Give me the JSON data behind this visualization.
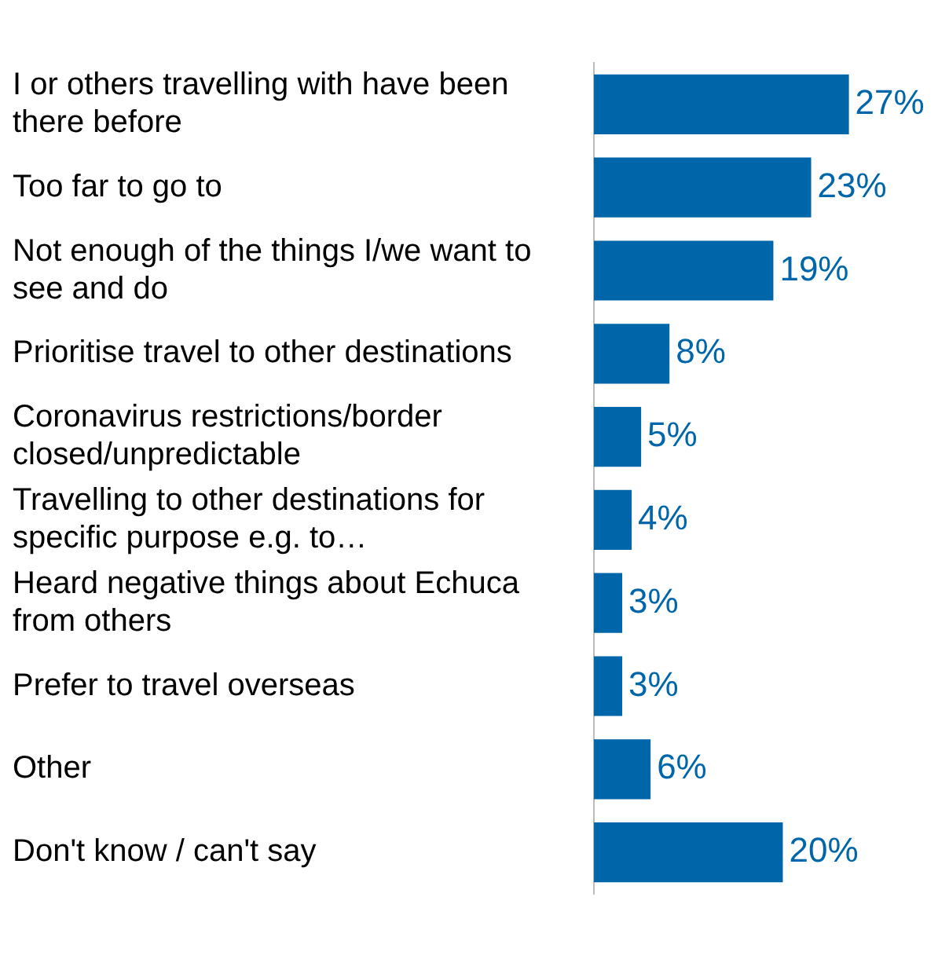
{
  "chart_data": {
    "type": "bar",
    "orientation": "horizontal",
    "categories": [
      "I or others travelling with have been there before",
      "Too far to go to",
      "Not enough of the things I/we want to see and do",
      "Prioritise travel to other destinations",
      "Coronavirus restrictions/border closed/unpredictable",
      "Travelling to other destinations for specific purpose e.g. to…",
      "Heard negative things about Echuca from others",
      "Prefer to travel overseas",
      "Other",
      "Don't know / can't say"
    ],
    "values": [
      27,
      23,
      19,
      8,
      5,
      4,
      3,
      3,
      6,
      20
    ],
    "value_labels": [
      "27%",
      "23%",
      "19%",
      "8%",
      "5%",
      "4%",
      "3%",
      "3%",
      "6%",
      "20%"
    ],
    "color": "#0066aa",
    "grid": false,
    "legend": false
  }
}
